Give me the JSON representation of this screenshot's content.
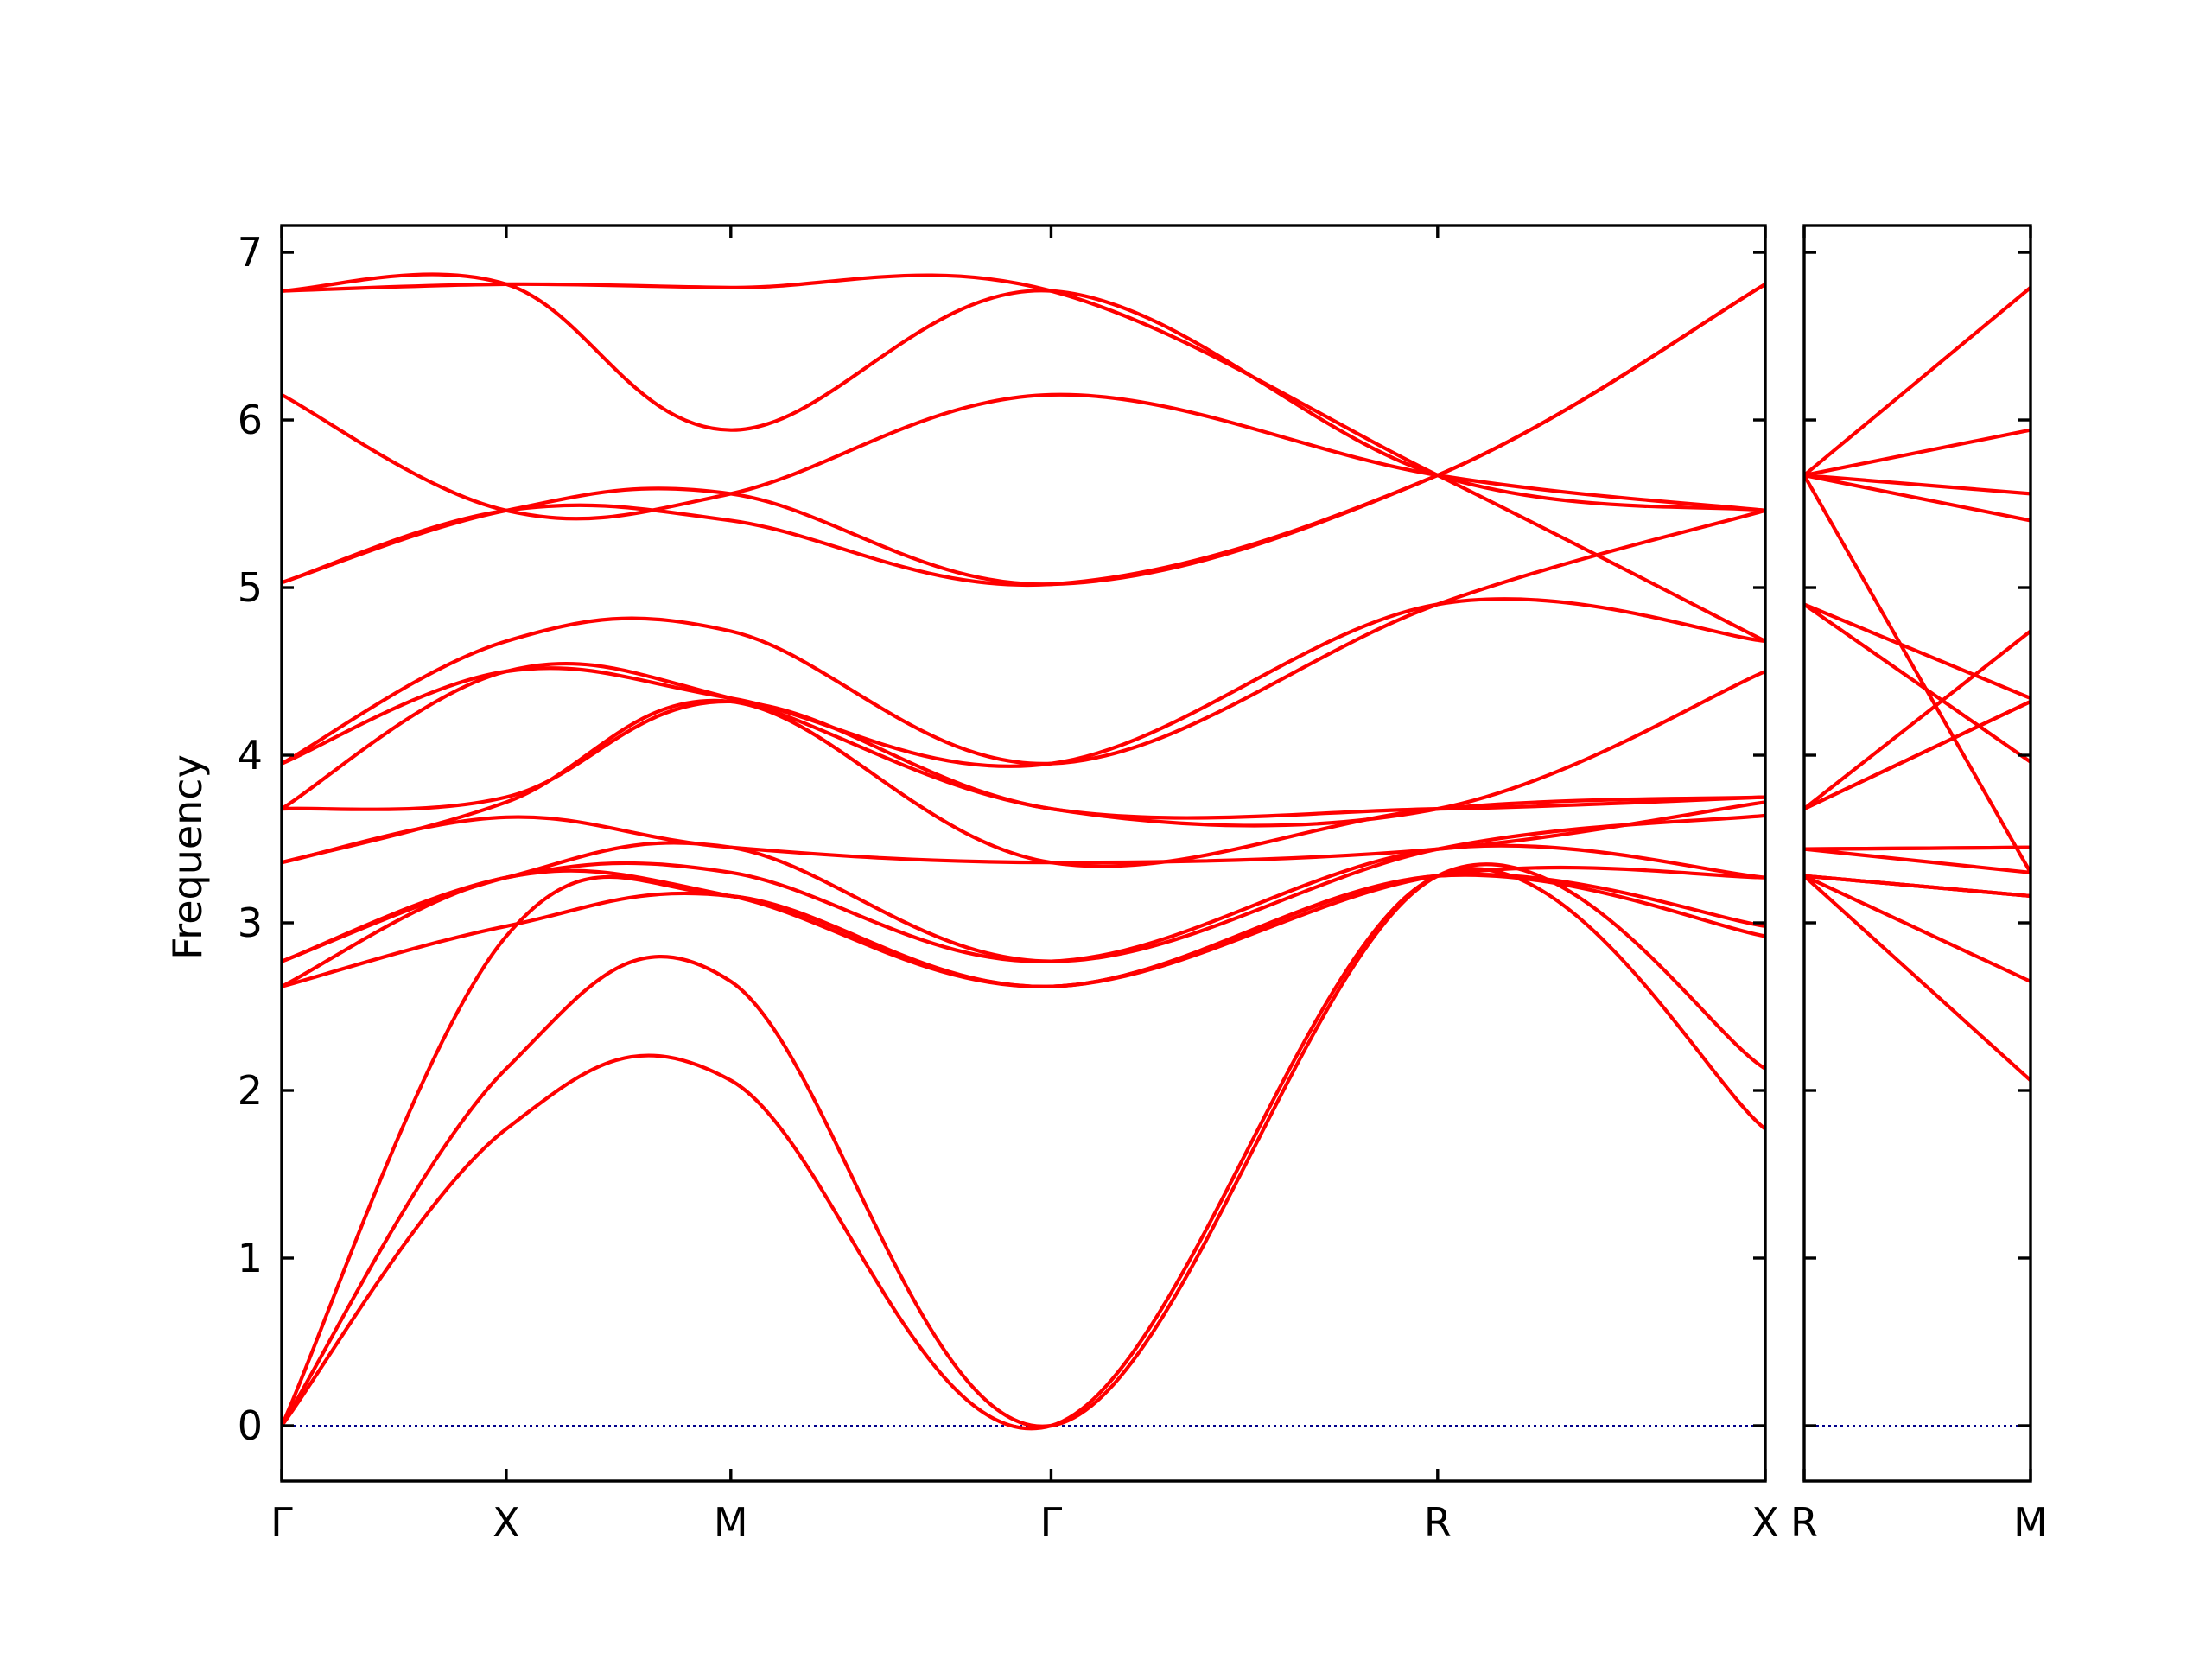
{
  "chart_data": {
    "type": "line",
    "title": "",
    "ylabel": "Frequency",
    "xlabel": "",
    "ylim": [
      -0.33,
      7.16
    ],
    "yticks": [
      0,
      1,
      2,
      3,
      4,
      5,
      6,
      7
    ],
    "grid": false,
    "colors": {
      "bands": "#ff0000",
      "zero_line": "#00008b",
      "frame": "#000000"
    },
    "panels": [
      {
        "name": "panel-1",
        "xlim": [
          0,
          4.03
        ],
        "xticks": [
          {
            "x": 0.0,
            "label": "Γ"
          },
          {
            "x": 0.61,
            "label": "X"
          },
          {
            "x": 1.22,
            "label": "M"
          },
          {
            "x": 2.09,
            "label": "Γ"
          },
          {
            "x": 3.14,
            "label": "R"
          },
          {
            "x": 4.03,
            "label": "X"
          }
        ],
        "bands": [
          {
            "x": [
              0,
              0.61,
              1.22,
              2.09,
              3.14,
              4.03
            ],
            "y": [
              0,
              1.77,
              2.06,
              0,
              3.28,
              1.77
            ]
          },
          {
            "x": [
              0,
              0.61,
              1.22,
              2.09,
              3.14,
              4.03
            ],
            "y": [
              0,
              2.13,
              2.65,
              0,
              3.28,
              2.13
            ]
          },
          {
            "x": [
              0,
              0.61,
              1.22,
              2.09,
              3.14,
              4.03
            ],
            "y": [
              0,
              2.92,
              3.16,
              2.62,
              3.28,
              2.92
            ]
          },
          {
            "x": [
              0,
              0.61,
              1.22,
              2.09,
              3.14,
              4.03
            ],
            "y": [
              2.62,
              2.98,
              3.16,
              2.62,
              3.28,
              2.98
            ]
          },
          {
            "x": [
              0,
              0.61,
              1.22,
              2.09,
              3.14,
              4.03
            ],
            "y": [
              2.62,
              3.27,
              3.16,
              2.62,
              3.28,
              3.27
            ]
          },
          {
            "x": [
              0,
              0.61,
              1.22,
              2.09,
              3.14,
              4.03
            ],
            "y": [
              2.77,
              3.27,
              3.3,
              2.77,
              3.44,
              3.27
            ]
          },
          {
            "x": [
              0,
              0.61,
              1.22,
              2.09,
              3.14,
              4.03
            ],
            "y": [
              2.77,
              3.27,
              3.45,
              2.77,
              3.44,
              3.64
            ]
          },
          {
            "x": [
              0,
              0.61,
              1.22,
              2.09,
              3.14,
              4.03
            ],
            "y": [
              3.36,
              3.63,
              3.45,
              3.36,
              3.44,
              3.72
            ]
          },
          {
            "x": [
              0,
              0.61,
              1.22,
              2.09,
              3.14,
              4.03
            ],
            "y": [
              3.36,
              3.72,
              4.32,
              3.36,
              3.68,
              3.75
            ]
          },
          {
            "x": [
              0,
              0.61,
              1.22,
              2.09,
              3.14,
              4.03
            ],
            "y": [
              3.68,
              3.75,
              4.32,
              3.68,
              3.68,
              3.75
            ]
          },
          {
            "x": [
              0,
              0.61,
              1.22,
              2.09,
              3.14,
              4.03
            ],
            "y": [
              3.68,
              4.5,
              4.34,
              3.68,
              3.68,
              4.5
            ]
          },
          {
            "x": [
              0,
              0.61,
              1.22,
              2.09,
              3.14,
              4.03
            ],
            "y": [
              3.95,
              4.5,
              4.34,
              3.95,
              4.9,
              4.68
            ]
          },
          {
            "x": [
              0,
              0.61,
              1.22,
              2.09,
              3.14,
              4.03
            ],
            "y": [
              3.95,
              4.68,
              4.74,
              3.95,
              4.9,
              5.46
            ]
          },
          {
            "x": [
              0,
              0.61,
              1.22,
              2.09,
              3.14,
              4.03
            ],
            "y": [
              5.03,
              5.46,
              5.4,
              5.02,
              5.67,
              6.81
            ]
          },
          {
            "x": [
              0,
              0.61,
              1.22,
              2.09,
              3.14,
              4.03
            ],
            "y": [
              5.03,
              5.46,
              5.56,
              5.02,
              5.67,
              6.81
            ]
          },
          {
            "x": [
              0,
              0.61,
              1.22,
              2.09,
              3.14,
              4.03
            ],
            "y": [
              6.15,
              5.46,
              5.56,
              6.15,
              5.67,
              5.46
            ]
          },
          {
            "x": [
              0,
              0.61,
              1.22,
              2.09,
              3.14,
              4.03
            ],
            "y": [
              6.77,
              6.81,
              5.94,
              6.77,
              5.67,
              5.46
            ]
          },
          {
            "x": [
              0,
              0.61,
              1.22,
              2.09,
              3.14,
              4.03
            ],
            "y": [
              6.77,
              6.81,
              6.79,
              6.77,
              5.67,
              4.68
            ]
          }
        ]
      },
      {
        "name": "panel-2",
        "xlim": [
          0,
          0.61
        ],
        "xticks": [
          {
            "x": 0.0,
            "label": "R"
          },
          {
            "x": 0.61,
            "label": "M"
          }
        ],
        "bands": [
          {
            "x": [
              0,
              0.61
            ],
            "y": [
              3.28,
              2.06
            ]
          },
          {
            "x": [
              0,
              0.61
            ],
            "y": [
              3.28,
              2.65
            ]
          },
          {
            "x": [
              0,
              0.61
            ],
            "y": [
              3.28,
              3.16
            ]
          },
          {
            "x": [
              0,
              0.61
            ],
            "y": [
              3.28,
              3.16
            ]
          },
          {
            "x": [
              0,
              0.61
            ],
            "y": [
              3.28,
              3.16
            ]
          },
          {
            "x": [
              0,
              0.61
            ],
            "y": [
              3.44,
              3.3
            ]
          },
          {
            "x": [
              0,
              0.61
            ],
            "y": [
              3.44,
              3.45
            ]
          },
          {
            "x": [
              0,
              0.61
            ],
            "y": [
              3.44,
              3.45
            ]
          },
          {
            "x": [
              0,
              0.61
            ],
            "y": [
              3.68,
              4.32
            ]
          },
          {
            "x": [
              0,
              0.61
            ],
            "y": [
              3.68,
              4.32
            ]
          },
          {
            "x": [
              0,
              0.61
            ],
            "y": [
              3.68,
              4.74
            ]
          },
          {
            "x": [
              0,
              0.61
            ],
            "y": [
              4.9,
              4.34
            ]
          },
          {
            "x": [
              0,
              0.61
            ],
            "y": [
              4.9,
              3.96
            ]
          },
          {
            "x": [
              0,
              0.61
            ],
            "y": [
              5.67,
              5.4
            ]
          },
          {
            "x": [
              0,
              0.61
            ],
            "y": [
              5.67,
              5.56
            ]
          },
          {
            "x": [
              0,
              0.61
            ],
            "y": [
              5.67,
              5.94
            ]
          },
          {
            "x": [
              0,
              0.61
            ],
            "y": [
              5.67,
              6.79
            ]
          },
          {
            "x": [
              0,
              0.61
            ],
            "y": [
              5.67,
              3.3
            ]
          }
        ]
      }
    ]
  }
}
